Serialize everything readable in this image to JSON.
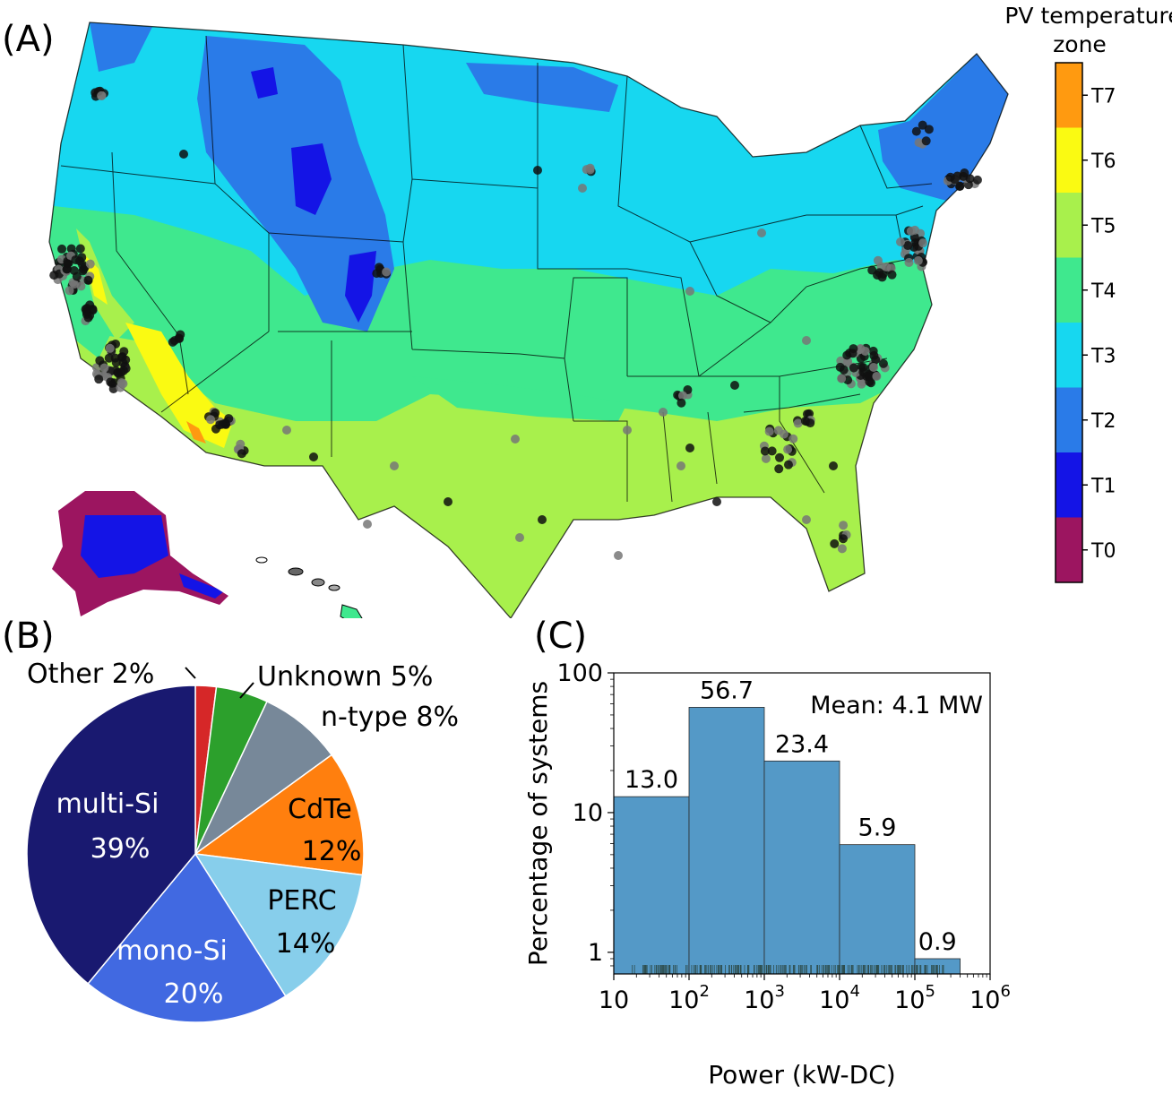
{
  "panels": {
    "a": {
      "label": "(A)"
    },
    "b": {
      "label": "(B)"
    },
    "c": {
      "label": "(C)"
    }
  },
  "colors": {
    "T0": "#9c1560",
    "T1": "#1414e6",
    "T2": "#2a7be8",
    "T3": "#17d7f0",
    "T4": "#3fe88e",
    "T5": "#a8f04c",
    "T6": "#fafa12",
    "T7": "#ff9a10",
    "site_dark": "#111111",
    "site_gray": "#777777",
    "bar": "#5499c7"
  },
  "chart_data": [
    {
      "type": "heatmap",
      "panel": "A",
      "colorbar_title_line1": "PV temperature",
      "colorbar_title_line2": "zone",
      "zones": [
        "T0",
        "T1",
        "T2",
        "T3",
        "T4",
        "T5",
        "T6",
        "T7"
      ],
      "legend_placement": "right"
    },
    {
      "type": "pie",
      "panel": "B",
      "slices": [
        {
          "label": "Other",
          "pct_text": "2%",
          "value": 2,
          "color": "#d62728"
        },
        {
          "label": "Unknown",
          "pct_text": "5%",
          "value": 5,
          "color": "#2ca02c"
        },
        {
          "label": "n-type",
          "pct_text": "8%",
          "value": 8,
          "color": "#778899"
        },
        {
          "label": "CdTe",
          "pct_text": "12%",
          "value": 12,
          "color": "#ff7f0e"
        },
        {
          "label": "PERC",
          "pct_text": "14%",
          "value": 14,
          "color": "#87ceeb"
        },
        {
          "label": "mono-Si",
          "pct_text": "20%",
          "value": 20,
          "color": "#4169e1"
        },
        {
          "label": "multi-Si",
          "pct_text": "39%",
          "value": 39,
          "color": "#191970"
        }
      ]
    },
    {
      "type": "bar",
      "panel": "C",
      "x_log": true,
      "y_log": true,
      "xlabel": "Power (kW-DC)",
      "ylabel": "Percentage of systems",
      "annotation": "Mean: 4.1 MW",
      "xlim": [
        10,
        1000000
      ],
      "ylim": [
        0.7,
        100
      ],
      "bins": [
        {
          "x0": 10,
          "x1": 100,
          "value": 13.0,
          "label": "13.0"
        },
        {
          "x0": 100,
          "x1": 1000,
          "value": 56.7,
          "label": "56.7"
        },
        {
          "x0": 1000,
          "x1": 10000,
          "value": 23.4,
          "label": "23.4"
        },
        {
          "x0": 10000,
          "x1": 100000,
          "value": 5.9,
          "label": "5.9"
        },
        {
          "x0": 100000,
          "x1": 400000,
          "value": 0.9,
          "label": "0.9"
        }
      ],
      "x_ticks": [
        {
          "value": 10,
          "base": "10",
          "exp": ""
        },
        {
          "value": 100,
          "base": "10",
          "exp": "2"
        },
        {
          "value": 1000,
          "base": "10",
          "exp": "3"
        },
        {
          "value": 10000,
          "base": "10",
          "exp": "4"
        },
        {
          "value": 100000,
          "base": "10",
          "exp": "5"
        },
        {
          "value": 1000000,
          "base": "10",
          "exp": "6"
        }
      ],
      "y_ticks": [
        {
          "value": 1,
          "label": "1"
        },
        {
          "value": 10,
          "label": "10"
        },
        {
          "value": 100,
          "label": "100"
        }
      ]
    }
  ]
}
